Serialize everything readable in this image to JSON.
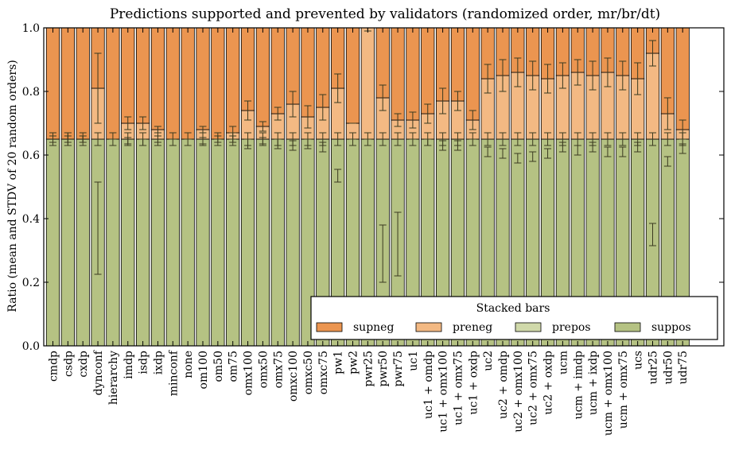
{
  "chart_data": {
    "type": "bar",
    "stacked": true,
    "title": "Predictions supported and prevented by validators (randomized order, mr/br/dt)",
    "xlabel": "",
    "ylabel": "Ratio (mean and STDV of 20 random orders)",
    "ylim": [
      0,
      1
    ],
    "yticks": [
      "0.0",
      "0.2",
      "0.4",
      "0.6",
      "0.8",
      "1.0"
    ],
    "grid": false,
    "legend": {
      "title": "Stacked bars",
      "placement": "lower-right"
    },
    "colors": {
      "suppos": "#b5c283",
      "prepos": "#d0d9aa",
      "preneg": "#f3b983",
      "supneg": "#eb9550",
      "edge": "#000000",
      "error_bar": "#3a3a20"
    },
    "categories": [
      "cmdp",
      "csdp",
      "cxdp",
      "dynconf",
      "hierarchy",
      "imdp",
      "isdp",
      "ixdp",
      "minconf",
      "none",
      "om100",
      "om50",
      "om75",
      "omx100",
      "omx50",
      "omx75",
      "omxc100",
      "omxc50",
      "omxc75",
      "pw1",
      "pw2",
      "pwr25",
      "pwr50",
      "pwr75",
      "uc1",
      "uc1 + omdp",
      "uc1 + omx100",
      "uc1 + omx75",
      "uc1 + oxdp",
      "uc2",
      "uc2 + omdp",
      "uc2 + omx100",
      "uc2 + omx75",
      "uc2 + oxdp",
      "ucm",
      "ucm + imdp",
      "ucm + ixdp",
      "ucm + omx100",
      "ucm + omx75",
      "ucs",
      "udr25",
      "udr50",
      "udr75"
    ],
    "series": [
      {
        "name": "suppos",
        "values": [
          0.65,
          0.65,
          0.65,
          0.65,
          0.65,
          0.65,
          0.65,
          0.65,
          0.65,
          0.65,
          0.65,
          0.65,
          0.65,
          0.65,
          0.65,
          0.65,
          0.65,
          0.65,
          0.65,
          0.65,
          0.65,
          0.65,
          0.65,
          0.65,
          0.65,
          0.65,
          0.65,
          0.65,
          0.65,
          0.65,
          0.65,
          0.65,
          0.65,
          0.65,
          0.65,
          0.65,
          0.65,
          0.65,
          0.65,
          0.65,
          0.65,
          0.65,
          0.65
        ]
      },
      {
        "name": "prepos",
        "values": [
          0,
          0,
          0,
          0,
          0,
          0,
          0,
          0,
          0,
          0,
          0,
          0,
          0,
          0,
          0,
          0,
          0,
          0,
          0,
          0,
          0,
          0,
          0,
          0,
          0,
          0,
          0,
          0,
          0,
          0,
          0,
          0,
          0,
          0,
          0,
          0,
          0,
          0,
          0,
          0,
          0,
          0,
          0
        ]
      },
      {
        "name": "preneg",
        "values": [
          0,
          0,
          0,
          0.16,
          0,
          0.05,
          0.05,
          0.03,
          0,
          0,
          0.03,
          0,
          0.02,
          0.09,
          0.04,
          0.08,
          0.11,
          0.07,
          0.1,
          0.16,
          0.05,
          0.35,
          0.13,
          0.06,
          0.06,
          0.08,
          0.12,
          0.12,
          0.06,
          0.19,
          0.2,
          0.21,
          0.2,
          0.19,
          0.2,
          0.21,
          0.2,
          0.21,
          0.2,
          0.19,
          0.27,
          0.08,
          0.03
        ]
      },
      {
        "name": "supneg",
        "values": [
          0.35,
          0.35,
          0.35,
          0.19,
          0.35,
          0.3,
          0.3,
          0.32,
          0.35,
          0.35,
          0.32,
          0.35,
          0.33,
          0.26,
          0.31,
          0.27,
          0.24,
          0.28,
          0.25,
          0.19,
          0.3,
          0,
          0.22,
          0.29,
          0.29,
          0.27,
          0.23,
          0.23,
          0.29,
          0.16,
          0.15,
          0.14,
          0.15,
          0.16,
          0.15,
          0.14,
          0.15,
          0.14,
          0.15,
          0.16,
          0.08,
          0.27,
          0.32
        ]
      }
    ],
    "error_bars": [
      {
        "name": "suppos",
        "means": [
          0.65,
          0.65,
          0.65,
          0.37,
          0.65,
          0.645,
          0.64,
          0.65,
          0.65,
          0.65,
          0.645,
          0.65,
          0.65,
          0.635,
          0.645,
          0.635,
          0.63,
          0.635,
          0.625,
          0.535,
          0.65,
          0.65,
          0.29,
          0.32,
          0.65,
          0.64,
          0.63,
          0.63,
          0.65,
          0.61,
          0.605,
          0.59,
          0.595,
          0.605,
          0.625,
          0.615,
          0.625,
          0.61,
          0.61,
          0.625,
          0.35,
          0.58,
          0.62
        ],
        "stdv": [
          0.01,
          0.01,
          0.01,
          0.145,
          0,
          0.01,
          0.01,
          0.01,
          0,
          0,
          0.01,
          0.01,
          0.01,
          0.015,
          0.01,
          0.015,
          0.015,
          0.015,
          0.015,
          0.02,
          0,
          0,
          0.09,
          0.1,
          0,
          0.01,
          0.015,
          0.015,
          0,
          0.015,
          0.015,
          0.015,
          0.015,
          0.015,
          0.015,
          0.015,
          0.015,
          0.015,
          0.015,
          0.015,
          0.035,
          0.015,
          0.015
        ]
      },
      {
        "name": "prepos",
        "means": [
          0.65,
          0.65,
          0.65,
          0.65,
          0.65,
          0.65,
          0.65,
          0.65,
          0.65,
          0.65,
          0.65,
          0.65,
          0.65,
          0.65,
          0.65,
          0.65,
          0.65,
          0.65,
          0.65,
          0.65,
          0.65,
          0.65,
          0.65,
          0.65,
          0.65,
          0.65,
          0.65,
          0.65,
          0.65,
          0.65,
          0.65,
          0.65,
          0.65,
          0.65,
          0.65,
          0.65,
          0.65,
          0.65,
          0.65,
          0.65,
          0.65,
          0.65,
          0.65
        ],
        "stdv": [
          0.02,
          0.02,
          0.02,
          0.02,
          0.02,
          0.02,
          0.02,
          0.02,
          0.02,
          0.02,
          0.02,
          0.02,
          0.02,
          0.02,
          0.02,
          0.02,
          0.02,
          0.02,
          0.02,
          0.02,
          0.02,
          0.02,
          0.02,
          0.02,
          0.02,
          0.02,
          0.02,
          0.02,
          0.02,
          0.02,
          0.02,
          0.02,
          0.02,
          0.02,
          0.02,
          0.02,
          0.02,
          0.02,
          0.02,
          0.02,
          0.02,
          0.02,
          0.02
        ]
      },
      {
        "name": "preneg",
        "means": [
          0.65,
          0.65,
          0.65,
          0.81,
          0.65,
          0.7,
          0.7,
          0.68,
          0.65,
          0.65,
          0.68,
          0.65,
          0.67,
          0.74,
          0.69,
          0.73,
          0.76,
          0.72,
          0.75,
          0.81,
          0.7,
          1.0,
          0.78,
          0.71,
          0.71,
          0.73,
          0.77,
          0.77,
          0.71,
          0.84,
          0.85,
          0.86,
          0.85,
          0.84,
          0.85,
          0.86,
          0.85,
          0.86,
          0.85,
          0.84,
          0.92,
          0.73,
          0.68
        ],
        "stdv": [
          0.02,
          0.02,
          0.01,
          0.11,
          0,
          0.02,
          0.02,
          0.01,
          0,
          0,
          0.01,
          0,
          0.02,
          0.03,
          0.015,
          0.02,
          0.04,
          0.035,
          0.04,
          0.045,
          0,
          0.01,
          0.04,
          0.02,
          0.025,
          0.03,
          0.04,
          0.03,
          0.03,
          0.045,
          0.05,
          0.045,
          0.045,
          0.045,
          0.04,
          0.04,
          0.045,
          0.045,
          0.045,
          0.05,
          0.04,
          0.05,
          0.03
        ]
      }
    ]
  }
}
